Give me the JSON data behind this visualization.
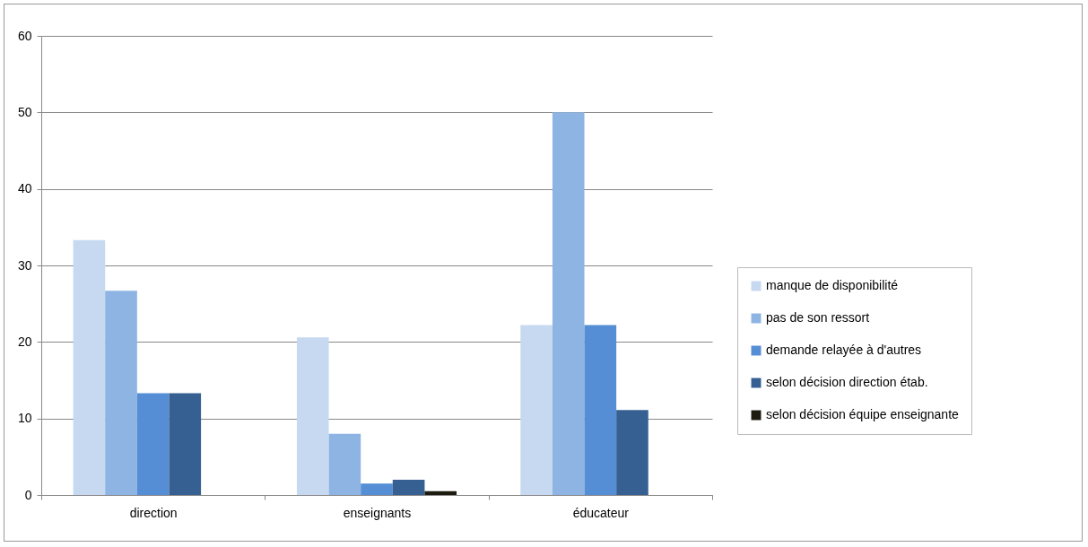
{
  "chart_data": {
    "type": "bar",
    "categories": [
      "direction",
      "enseignants",
      "éducateur"
    ],
    "series": [
      {
        "name": "manque de disponibilité",
        "color": "#c6d9f1",
        "values": [
          33.3,
          20.6,
          22.2
        ]
      },
      {
        "name": "pas de son ressort",
        "color": "#8eb4e3",
        "values": [
          26.7,
          8.0,
          50.0
        ]
      },
      {
        "name": "demande relayée à d'autres",
        "color": "#558ed5",
        "values": [
          13.3,
          1.5,
          22.2
        ]
      },
      {
        "name": "selon décision direction étab.",
        "color": "#376092",
        "values": [
          13.3,
          2.0,
          11.1
        ]
      },
      {
        "name": "selon décision équipe enseignante",
        "color": "#1e1c11",
        "values": [
          0,
          0.5,
          0
        ]
      }
    ],
    "ylim": [
      0,
      60
    ],
    "yticks": [
      0,
      10,
      20,
      30,
      40,
      50,
      60
    ],
    "grid": "y",
    "legend": "right"
  }
}
